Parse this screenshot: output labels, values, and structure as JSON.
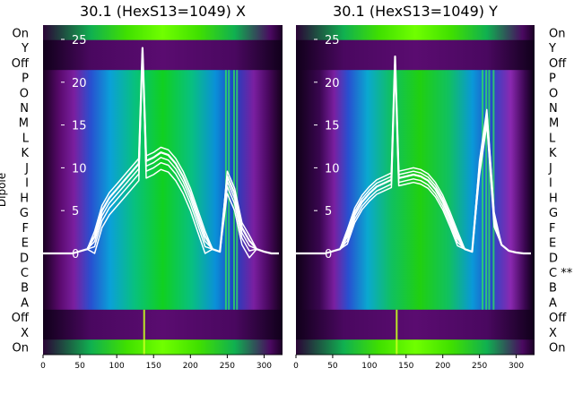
{
  "chart_data": [
    {
      "type": "heatmap",
      "title": "30.1 (HexS13=1049) X",
      "ylabel": "Dipole",
      "xlim": [
        0,
        325
      ],
      "x_ticks": [
        0,
        50,
        100,
        150,
        200,
        250,
        300
      ],
      "overlay_ylim": [
        -2,
        26
      ],
      "overlay_ticks": [
        0,
        5,
        10,
        15,
        20,
        25
      ],
      "row_labels": [
        "On",
        "Y",
        "Off",
        "P",
        "O",
        "N",
        "M",
        "L",
        "K",
        "J",
        "I",
        "H",
        "G",
        "F",
        "E",
        "D",
        "C",
        "B",
        "A",
        "Off",
        "X",
        "On"
      ],
      "grid": false,
      "series": [
        {
          "name": "",
          "x": [
            0,
            40,
            60,
            70,
            80,
            90,
            100,
            110,
            120,
            130,
            135,
            140,
            150,
            160,
            170,
            180,
            190,
            200,
            210,
            220,
            230,
            240,
            250,
            260,
            270,
            280,
            290,
            300,
            310,
            320
          ],
          "y": [
            0,
            0,
            0.5,
            2,
            5,
            6.5,
            7.5,
            8.5,
            9.5,
            10.5,
            24,
            10.8,
            11.2,
            11.8,
            11.5,
            10.5,
            9,
            7,
            4.5,
            2,
            0.5,
            0.2,
            9,
            7,
            3,
            1.5,
            0.5,
            0.2,
            0,
            0
          ]
        }
      ]
    },
    {
      "type": "heatmap",
      "title": "30.1 (HexS13=1049) Y",
      "ylabel": "",
      "xlim": [
        0,
        325
      ],
      "x_ticks": [
        0,
        50,
        100,
        150,
        200,
        250,
        300
      ],
      "overlay_ylim": [
        -2,
        26
      ],
      "overlay_ticks": [
        0,
        5,
        10,
        15,
        20,
        25
      ],
      "row_labels": [
        "On",
        "Y",
        "Off",
        "P",
        "O",
        "N",
        "M",
        "L",
        "K",
        "J",
        "I",
        "H",
        "G",
        "F",
        "E",
        "D",
        "C **",
        "B",
        "A",
        "Off",
        "X",
        "On"
      ],
      "grid": false,
      "series": [
        {
          "name": "",
          "x": [
            0,
            40,
            60,
            70,
            80,
            90,
            100,
            110,
            120,
            130,
            135,
            140,
            150,
            160,
            170,
            180,
            190,
            200,
            210,
            220,
            230,
            240,
            250,
            260,
            270,
            280,
            290,
            300,
            310,
            320
          ],
          "y": [
            0,
            0,
            0.5,
            2,
            4.5,
            6,
            7,
            7.8,
            8.2,
            8.6,
            23,
            8.8,
            9,
            9.2,
            9,
            8.5,
            7.5,
            6,
            4,
            1.8,
            0.5,
            0.2,
            10,
            16,
            4,
            1,
            0.3,
            0.1,
            0,
            0
          ]
        }
      ]
    }
  ]
}
